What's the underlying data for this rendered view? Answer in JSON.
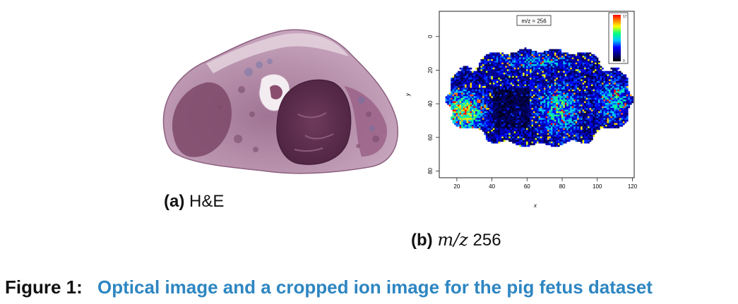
{
  "panel_a": {
    "label": "(a)",
    "text": "H&E"
  },
  "panel_b": {
    "label": "(b)",
    "text_math": "m/z",
    "text_num": "256",
    "plot_title": "m/z = 256",
    "xlabel": "x",
    "ylabel": "y",
    "colorbar_max": "17",
    "colorbar_min": "0"
  },
  "chart_data": {
    "type": "heatmap",
    "title": "m/z = 256",
    "xlabel": "x",
    "ylabel": "y",
    "x_ticks": [
      20,
      40,
      60,
      80,
      100,
      120
    ],
    "y_ticks": [
      0,
      20,
      40,
      60,
      80
    ],
    "xlim": [
      10,
      121
    ],
    "ylim": [
      -15,
      84
    ],
    "colorbar_range": [
      0,
      17
    ],
    "legend_position": "top-right",
    "grid": false
  },
  "figure": {
    "label": "Figure 1:",
    "caption": "Optical image and a cropped ion image for the pig fetus dataset"
  },
  "colors": {
    "caption_blue": "#2e86c1",
    "tissue_dark": "#5e2e4d",
    "tissue_light": "#c9a8c0"
  }
}
